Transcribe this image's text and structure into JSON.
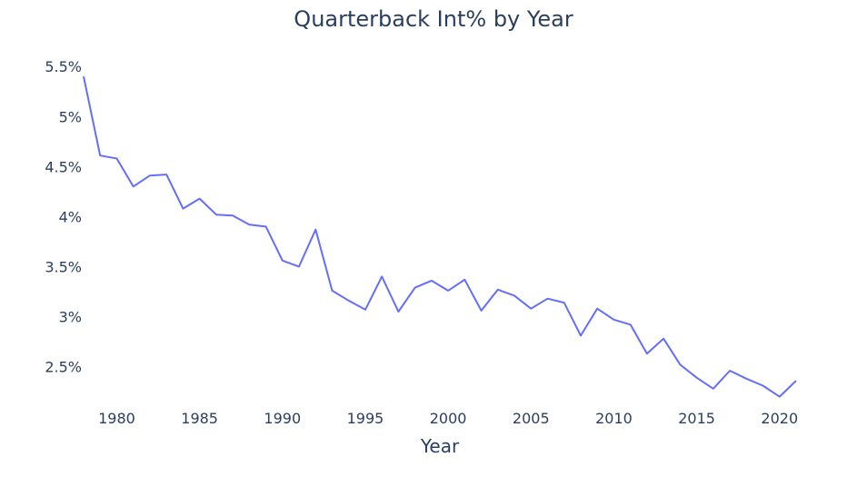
{
  "chart_data": {
    "type": "line",
    "title": "Quarterback Int% by Year",
    "xlabel": "Year",
    "ylabel": "",
    "xlim": [
      1978,
      2021
    ],
    "ylim": [
      2.06,
      5.62
    ],
    "grid": false,
    "colors": {
      "line": "#636efa",
      "text": "#2a3f5f"
    },
    "x_ticks": [
      1980,
      1985,
      1990,
      1995,
      2000,
      2005,
      2010,
      2015,
      2020
    ],
    "y_ticks": [
      {
        "value": 2.5,
        "label": "2.5%"
      },
      {
        "value": 3.0,
        "label": "3%"
      },
      {
        "value": 3.5,
        "label": "3.5%"
      },
      {
        "value": 4.0,
        "label": "4%"
      },
      {
        "value": 4.5,
        "label": "4.5%"
      },
      {
        "value": 5.0,
        "label": "5%"
      },
      {
        "value": 5.5,
        "label": "5.5%"
      }
    ],
    "series": [
      {
        "x": [
          1978,
          1979,
          1980,
          1981,
          1982,
          1983,
          1984,
          1985,
          1986,
          1987,
          1988,
          1989,
          1990,
          1991,
          1992,
          1993,
          1994,
          1995,
          1996,
          1997,
          1998,
          1999,
          2000,
          2001,
          2002,
          2003,
          2004,
          2005,
          2006,
          2007,
          2008,
          2009,
          2010,
          2011,
          2012,
          2013,
          2014,
          2015,
          2016,
          2017,
          2018,
          2019,
          2020,
          2021
        ],
        "values": [
          5.4,
          4.61,
          4.58,
          4.3,
          4.41,
          4.42,
          4.08,
          4.18,
          4.02,
          4.01,
          3.92,
          3.9,
          3.56,
          3.5,
          3.87,
          3.26,
          3.16,
          3.07,
          3.4,
          3.05,
          3.29,
          3.36,
          3.26,
          3.37,
          3.06,
          3.27,
          3.21,
          3.08,
          3.18,
          3.14,
          2.81,
          3.08,
          2.97,
          2.92,
          2.63,
          2.78,
          2.52,
          2.39,
          2.28,
          2.46,
          2.38,
          2.31,
          2.2,
          2.36
        ]
      }
    ]
  }
}
